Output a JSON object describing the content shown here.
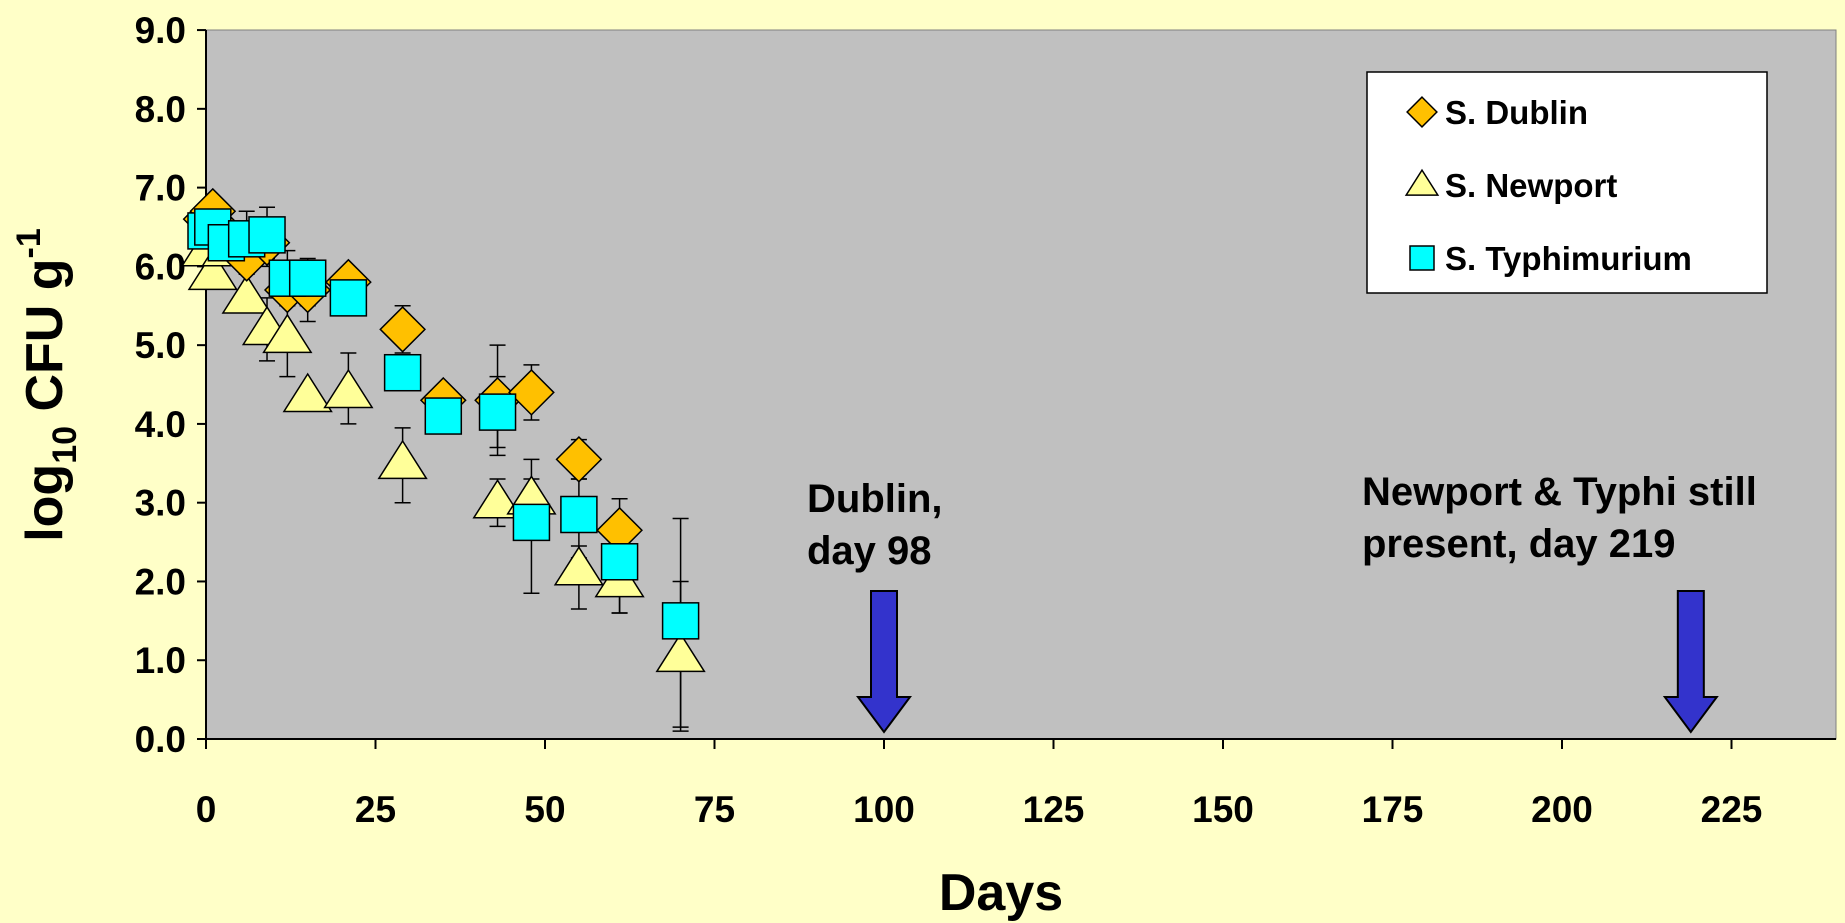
{
  "chart_data": {
    "type": "scatter",
    "xlabel": "Days",
    "ylabel": {
      "prefix": "log",
      "sub": "10",
      "middle": " CFU g",
      "sup": "-1"
    },
    "xlim": [
      0,
      240
    ],
    "ylim": [
      0,
      9
    ],
    "x_ticks": [
      "0",
      "25",
      "50",
      "75",
      "100",
      "125",
      "150",
      "175",
      "200",
      "225"
    ],
    "y_ticks": [
      "0.0",
      "1.0",
      "2.0",
      "3.0",
      "4.0",
      "5.0",
      "6.0",
      "7.0",
      "8.0",
      "9.0"
    ],
    "grid": false,
    "legend_position": "top-right",
    "plot_background": "#C0C0C0",
    "page_background": "#FFFFC8",
    "series": [
      {
        "name": "S. Dublin",
        "marker": "diamond",
        "color": "#FFC000",
        "points": [
          {
            "x": 0,
            "y": 6.6
          },
          {
            "x": 1,
            "y": 6.7
          },
          {
            "x": 3,
            "y": 6.4
          },
          {
            "x": 6,
            "y": 6.1
          },
          {
            "x": 9,
            "y": 6.3
          },
          {
            "x": 12,
            "y": 5.7
          },
          {
            "x": 15,
            "y": 5.7
          },
          {
            "x": 21,
            "y": 5.8
          },
          {
            "x": 29,
            "y": 5.2
          },
          {
            "x": 35,
            "y": 4.3
          },
          {
            "x": 43,
            "y": 4.3
          },
          {
            "x": 48,
            "y": 4.4
          },
          {
            "x": 55,
            "y": 3.55
          },
          {
            "x": 61,
            "y": 2.65
          }
        ],
        "error_bars": [
          {
            "x": 6,
            "low": 5.9,
            "high": 6.4
          },
          {
            "x": 9,
            "low": 6.0,
            "high": 6.6
          },
          {
            "x": 12,
            "low": 5.5,
            "high": 6.0
          },
          {
            "x": 15,
            "low": 5.3,
            "high": 6.0
          },
          {
            "x": 29,
            "low": 4.9,
            "high": 5.5
          },
          {
            "x": 43,
            "low": 3.6,
            "high": 5.0
          },
          {
            "x": 48,
            "low": 4.05,
            "high": 4.75
          },
          {
            "x": 55,
            "low": 3.3,
            "high": 3.8
          },
          {
            "x": 61,
            "low": 2.3,
            "high": 3.05
          }
        ]
      },
      {
        "name": "S. Newport",
        "marker": "triangle",
        "color": "#FFFF99",
        "points": [
          {
            "x": 0,
            "y": 6.2
          },
          {
            "x": 1,
            "y": 5.9
          },
          {
            "x": 3,
            "y": 6.2
          },
          {
            "x": 6,
            "y": 5.6
          },
          {
            "x": 9,
            "y": 5.2
          },
          {
            "x": 12,
            "y": 5.1
          },
          {
            "x": 15,
            "y": 4.35
          },
          {
            "x": 21,
            "y": 4.4
          },
          {
            "x": 29,
            "y": 3.5
          },
          {
            "x": 43,
            "y": 3.0
          },
          {
            "x": 48,
            "y": 3.05
          },
          {
            "x": 55,
            "y": 2.15
          },
          {
            "x": 61,
            "y": 2.0
          },
          {
            "x": 70,
            "y": 1.05
          }
        ],
        "error_bars": [
          {
            "x": 9,
            "low": 4.8,
            "high": 5.6
          },
          {
            "x": 12,
            "low": 4.6,
            "high": 5.6
          },
          {
            "x": 21,
            "low": 4.0,
            "high": 4.9
          },
          {
            "x": 29,
            "low": 3.0,
            "high": 3.95
          },
          {
            "x": 43,
            "low": 2.7,
            "high": 3.3
          },
          {
            "x": 48,
            "low": 2.7,
            "high": 3.55
          },
          {
            "x": 55,
            "low": 1.65,
            "high": 2.45
          },
          {
            "x": 61,
            "low": 1.6,
            "high": 2.3
          },
          {
            "x": 70,
            "low": 0.15,
            "high": 2.0
          }
        ]
      },
      {
        "name": "S. Typhimurium",
        "marker": "square",
        "color": "#00FFFF",
        "points": [
          {
            "x": 0,
            "y": 6.45
          },
          {
            "x": 1,
            "y": 6.5
          },
          {
            "x": 3,
            "y": 6.3
          },
          {
            "x": 6,
            "y": 6.35
          },
          {
            "x": 9,
            "y": 6.4
          },
          {
            "x": 12,
            "y": 5.85
          },
          {
            "x": 15,
            "y": 5.85
          },
          {
            "x": 21,
            "y": 5.6
          },
          {
            "x": 29,
            "y": 4.65
          },
          {
            "x": 35,
            "y": 4.1
          },
          {
            "x": 43,
            "y": 4.15
          },
          {
            "x": 48,
            "y": 2.75
          },
          {
            "x": 55,
            "y": 2.85
          },
          {
            "x": 61,
            "y": 2.25
          },
          {
            "x": 70,
            "y": 1.5
          }
        ],
        "error_bars": [
          {
            "x": 6,
            "low": 6.1,
            "high": 6.7
          },
          {
            "x": 9,
            "low": 6.1,
            "high": 6.75
          },
          {
            "x": 12,
            "low": 5.6,
            "high": 6.2
          },
          {
            "x": 15,
            "low": 5.5,
            "high": 6.1
          },
          {
            "x": 43,
            "low": 3.7,
            "high": 4.6
          },
          {
            "x": 48,
            "low": 1.85,
            "high": 3.3
          },
          {
            "x": 55,
            "low": 2.3,
            "high": 3.3
          },
          {
            "x": 61,
            "low": 1.6,
            "high": 2.6
          },
          {
            "x": 70,
            "low": 0.1,
            "high": 2.8
          }
        ]
      }
    ],
    "annotations": [
      {
        "lines": [
          "Dublin,",
          "day 98"
        ],
        "arrow_x": 100,
        "color": "#3333CC"
      },
      {
        "lines": [
          "Newport & Typhi still",
          "present, day 219"
        ],
        "arrow_x": 219,
        "color": "#3333CC"
      }
    ]
  }
}
